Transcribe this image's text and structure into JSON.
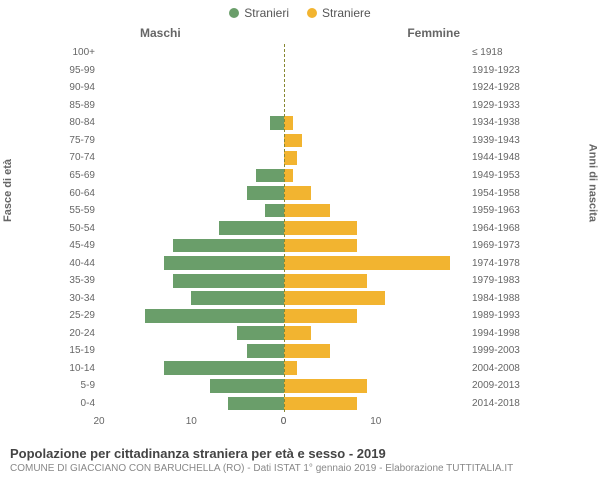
{
  "legend": {
    "male": {
      "label": "Stranieri",
      "color": "#6a9e6a"
    },
    "female": {
      "label": "Straniere",
      "color": "#f2b430"
    }
  },
  "header": {
    "male_label": "Maschi",
    "female_label": "Femmine"
  },
  "axes": {
    "left_title": "Fasce di età",
    "right_title": "Anni di nascita",
    "x_max": 20,
    "x_ticks_left": [
      20,
      10,
      0
    ],
    "x_ticks_right": [
      0,
      10
    ]
  },
  "styling": {
    "background": "#ffffff",
    "center_line_color": "#888833",
    "grid_color": "#eeeeee",
    "label_color": "#666666",
    "bar_height_pct": 78
  },
  "rows": [
    {
      "age": "100+",
      "year": "≤ 1918",
      "m": 0,
      "f": 0
    },
    {
      "age": "95-99",
      "year": "1919-1923",
      "m": 0,
      "f": 0
    },
    {
      "age": "90-94",
      "year": "1924-1928",
      "m": 0,
      "f": 0
    },
    {
      "age": "85-89",
      "year": "1929-1933",
      "m": 0,
      "f": 0
    },
    {
      "age": "80-84",
      "year": "1934-1938",
      "m": 1.5,
      "f": 1
    },
    {
      "age": "75-79",
      "year": "1939-1943",
      "m": 0,
      "f": 2
    },
    {
      "age": "70-74",
      "year": "1944-1948",
      "m": 0,
      "f": 1.5
    },
    {
      "age": "65-69",
      "year": "1949-1953",
      "m": 3,
      "f": 1
    },
    {
      "age": "60-64",
      "year": "1954-1958",
      "m": 4,
      "f": 3
    },
    {
      "age": "55-59",
      "year": "1959-1963",
      "m": 2,
      "f": 5
    },
    {
      "age": "50-54",
      "year": "1964-1968",
      "m": 7,
      "f": 8
    },
    {
      "age": "45-49",
      "year": "1969-1973",
      "m": 12,
      "f": 8
    },
    {
      "age": "40-44",
      "year": "1974-1978",
      "m": 13,
      "f": 18
    },
    {
      "age": "35-39",
      "year": "1979-1983",
      "m": 12,
      "f": 9
    },
    {
      "age": "30-34",
      "year": "1984-1988",
      "m": 10,
      "f": 11
    },
    {
      "age": "25-29",
      "year": "1989-1993",
      "m": 15,
      "f": 8
    },
    {
      "age": "20-24",
      "year": "1994-1998",
      "m": 5,
      "f": 3
    },
    {
      "age": "15-19",
      "year": "1999-2003",
      "m": 4,
      "f": 5
    },
    {
      "age": "10-14",
      "year": "2004-2008",
      "m": 13,
      "f": 1.5
    },
    {
      "age": "5-9",
      "year": "2009-2013",
      "m": 8,
      "f": 9
    },
    {
      "age": "0-4",
      "year": "2014-2018",
      "m": 6,
      "f": 8
    }
  ],
  "footer": {
    "title": "Popolazione per cittadinanza straniera per età e sesso - 2019",
    "subtitle": "COMUNE DI GIACCIANO CON BARUCHELLA (RO) - Dati ISTAT 1° gennaio 2019 - Elaborazione TUTTITALIA.IT"
  }
}
